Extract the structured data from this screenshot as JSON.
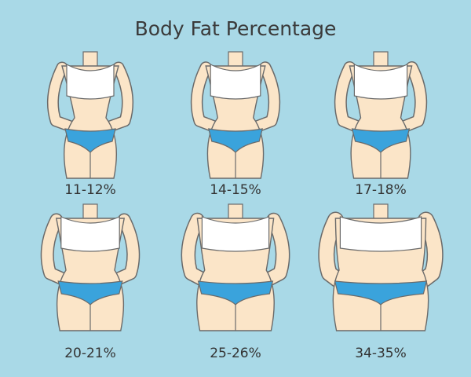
{
  "title": "Body Fat Percentage",
  "figures": [
    {
      "label": "11-12%"
    },
    {
      "label": "14-15%"
    },
    {
      "label": "17-18%"
    },
    {
      "label": "20-21%"
    },
    {
      "label": "25-26%"
    },
    {
      "label": "34-35%"
    }
  ]
}
